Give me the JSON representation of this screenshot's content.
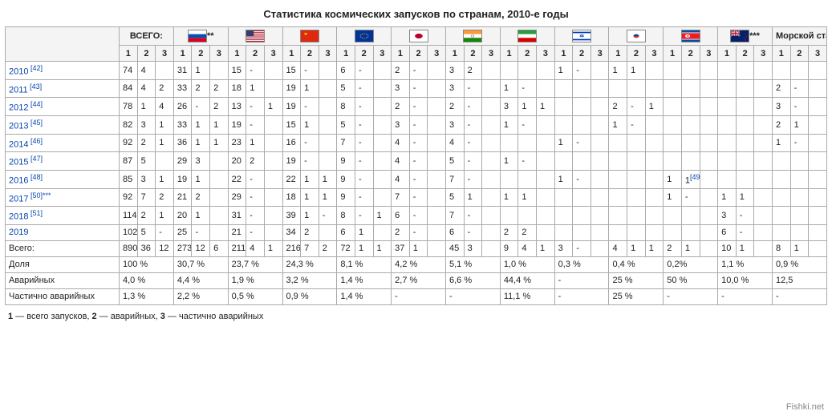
{
  "title": "Статистика космических запусков по странам, 2010-е годы",
  "legend": "1 — всего запусков, 2 — аварийных, 3 — частично аварийных",
  "watermark": "Fishki.net",
  "group_headers": [
    {
      "label": "ВСЕГО:",
      "flag": null,
      "suffix": ""
    },
    {
      "label": "",
      "flag": "ru",
      "suffix": "**"
    },
    {
      "label": "",
      "flag": "us",
      "suffix": ""
    },
    {
      "label": "",
      "flag": "cn",
      "suffix": ""
    },
    {
      "label": "",
      "flag": "eu",
      "suffix": ""
    },
    {
      "label": "",
      "flag": "jp",
      "suffix": ""
    },
    {
      "label": "",
      "flag": "in",
      "suffix": ""
    },
    {
      "label": "",
      "flag": "ir",
      "suffix": ""
    },
    {
      "label": "",
      "flag": "il",
      "suffix": ""
    },
    {
      "label": "",
      "flag": "kr",
      "suffix": ""
    },
    {
      "label": "",
      "flag": "kp",
      "suffix": ""
    },
    {
      "label": "",
      "flag": "nz",
      "suffix": "***"
    },
    {
      "label": "Морской старт *",
      "flag": null,
      "suffix": ""
    }
  ],
  "sub_headers": [
    "1",
    "2",
    "3"
  ],
  "year_rows": [
    {
      "label": "2010",
      "ref": "[42]",
      "v": [
        "74",
        "4",
        "",
        "31",
        "1",
        "",
        "15",
        "-",
        "",
        "15",
        "-",
        "",
        "6",
        "-",
        "",
        "2",
        "-",
        "",
        "3",
        "2",
        "",
        "",
        "",
        "",
        "1",
        "-",
        "",
        "1",
        "1",
        "",
        "",
        "",
        "",
        "",
        "",
        "",
        "",
        "",
        ""
      ]
    },
    {
      "label": "2011",
      "ref": "[43]",
      "v": [
        "84",
        "4",
        "2",
        "33",
        "2",
        "2",
        "18",
        "1",
        "",
        "19",
        "1",
        "",
        "5",
        "-",
        "",
        "3",
        "-",
        "",
        "3",
        "-",
        "",
        "1",
        "-",
        "",
        "",
        "",
        "",
        "",
        "",
        "",
        "",
        "",
        "",
        "",
        "",
        "",
        "2",
        "-",
        ""
      ]
    },
    {
      "label": "2012",
      "ref": "[44]",
      "v": [
        "78",
        "1",
        "4",
        "26",
        "-",
        "2",
        "13",
        "-",
        "1",
        "19",
        "-",
        "",
        "8",
        "-",
        "",
        "2",
        "-",
        "",
        "2",
        "-",
        "",
        "3",
        "1",
        "1",
        "",
        "",
        "",
        "2",
        "-",
        "1",
        "",
        "",
        "",
        "",
        "",
        "",
        "3",
        "-",
        ""
      ]
    },
    {
      "label": "2013",
      "ref": "[45]",
      "v": [
        "82",
        "3",
        "1",
        "33",
        "1",
        "1",
        "19",
        "-",
        "",
        "15",
        "1",
        "",
        "5",
        "-",
        "",
        "3",
        "-",
        "",
        "3",
        "-",
        "",
        "1",
        "-",
        "",
        "",
        "",
        "",
        "1",
        "-",
        "",
        "",
        "",
        "",
        "",
        "",
        "",
        "2",
        "1",
        ""
      ]
    },
    {
      "label": "2014",
      "ref": "[46]",
      "v": [
        "92",
        "2",
        "1",
        "36",
        "1",
        "1",
        "23",
        "1",
        "",
        "16",
        "-",
        "",
        "7",
        "-",
        "",
        "4",
        "-",
        "",
        "4",
        "-",
        "",
        "",
        "",
        "",
        "1",
        "-",
        "",
        "",
        "",
        "",
        "",
        "",
        "",
        "",
        "",
        "",
        "1",
        "-",
        ""
      ]
    },
    {
      "label": "2015",
      "ref": "[47]",
      "v": [
        "87",
        "5",
        "",
        "29",
        "3",
        "",
        "20",
        "2",
        "",
        "19",
        "-",
        "",
        "9",
        "-",
        "",
        "4",
        "-",
        "",
        "5",
        "-",
        "",
        "1",
        "-",
        "",
        "",
        "",
        "",
        "",
        "",
        "",
        "",
        "",
        "",
        "",
        "",
        "",
        "",
        "",
        ""
      ]
    },
    {
      "label": "2016",
      "ref": "[48]",
      "v": [
        "85",
        "3",
        "1",
        "19",
        "1",
        "",
        "22",
        "-",
        "",
        "22",
        "1",
        "1",
        "9",
        "-",
        "",
        "4",
        "-",
        "",
        "7",
        "-",
        "",
        "",
        "",
        "",
        "1",
        "-",
        "",
        "",
        "",
        "",
        "1",
        "1[49]",
        "",
        "",
        "",
        "",
        "",
        "",
        ""
      ]
    },
    {
      "label": "2017",
      "ref": "[50]***",
      "v": [
        "92",
        "7",
        "2",
        "21",
        "2",
        "",
        "29",
        "-",
        "",
        "18",
        "1",
        "1",
        "9",
        "-",
        "",
        "7",
        "-",
        "",
        "5",
        "1",
        "",
        "1",
        "1",
        "",
        "",
        "",
        "",
        "",
        "",
        "",
        "1",
        "-",
        "",
        "1",
        "1",
        "",
        "",
        "",
        ""
      ]
    },
    {
      "label": "2018",
      "ref": "[51]",
      "v": [
        "114",
        "2",
        "1",
        "20",
        "1",
        "",
        "31",
        "-",
        "",
        "39",
        "1",
        "-",
        "8",
        "-",
        "1",
        "6",
        "-",
        "",
        "7",
        "-",
        "",
        "",
        "",
        "",
        "",
        "",
        "",
        "",
        "",
        "",
        "",
        "",
        "",
        "3",
        "-",
        "",
        "",
        "",
        ""
      ]
    },
    {
      "label": "2019",
      "ref": "",
      "v": [
        "102",
        "5",
        "-",
        "25",
        "-",
        "",
        "21",
        "-",
        "",
        "34",
        "2",
        "",
        "6",
        "1",
        "",
        "2",
        "-",
        "",
        "6",
        "-",
        "",
        "2",
        "2",
        "",
        "",
        "",
        "",
        "",
        "",
        "",
        "",
        "",
        "",
        "6",
        "-",
        "",
        "",
        "",
        ""
      ]
    }
  ],
  "summary_rows": [
    {
      "label": "Всего:",
      "cells": [
        "890",
        "36",
        "12",
        "273",
        "12",
        "6",
        "211",
        "4",
        "1",
        "216",
        "7",
        "2",
        "72",
        "1",
        "1",
        "37",
        "1",
        "",
        "45",
        "3",
        "",
        "9",
        "4",
        "1",
        "3",
        "-",
        "",
        "4",
        "1",
        "1",
        "2",
        "1",
        "",
        "10",
        "1",
        "",
        "8",
        "1",
        ""
      ]
    },
    {
      "label": "Доля",
      "spans": [
        "100 %",
        "30,7 %",
        "23,7 %",
        "24,3 %",
        "8,1 %",
        "4,2 %",
        "5,1 %",
        "1,0 %",
        "0,3 %",
        "0,4 %",
        "0,2%",
        "1,1 %",
        "0,9 %"
      ]
    },
    {
      "label": "Аварийных",
      "spans": [
        "4,0 %",
        "4,4 %",
        "1,9 %",
        "3,2 %",
        "1,4 %",
        "2,7 %",
        "6,6 %",
        "44,4 %",
        "-",
        "25 %",
        "50 %",
        "10,0 %",
        "12,5"
      ]
    },
    {
      "label": "Частично аварийных",
      "spans": [
        "1,3 %",
        "2,2 %",
        "0,5 %",
        "0,9 %",
        "1,4 %",
        "-",
        "-",
        "11,1 %",
        "-",
        "25 %",
        "-",
        "-",
        "-"
      ]
    }
  ],
  "flag_colors": {
    "ru": {
      "stripes": [
        [
          "#fff",
          "33%"
        ],
        [
          "#0052b4",
          "33%"
        ],
        [
          "#d80027",
          "34%"
        ]
      ],
      "dir": "h"
    },
    "us": {
      "bg": "#b22234",
      "canton": "#3c3b6e"
    },
    "cn": {
      "bg": "#de2910",
      "star": "#ffde00"
    },
    "eu": {
      "bg": "#003399",
      "star": "#ffcc00"
    },
    "jp": {
      "bg": "#fff",
      "circle": "#bc002d"
    },
    "in": {
      "stripes": [
        [
          "#ff9933",
          "33%"
        ],
        [
          "#fff",
          "33%"
        ],
        [
          "#138808",
          "34%"
        ]
      ],
      "dir": "h",
      "chakra": "#000080"
    },
    "ir": {
      "stripes": [
        [
          "#239f40",
          "33%"
        ],
        [
          "#fff",
          "33%"
        ],
        [
          "#da0000",
          "34%"
        ]
      ],
      "dir": "h"
    },
    "il": {
      "bg": "#fff",
      "bars": "#0038b8"
    },
    "kr": {
      "bg": "#fff",
      "yin": "#cd2e3a",
      "yang": "#0047a0"
    },
    "kp": {
      "bg": "#024fa2",
      "mid": "#ed1c27"
    },
    "nz": {
      "bg": "#012169",
      "cross": "#c8102e"
    }
  }
}
